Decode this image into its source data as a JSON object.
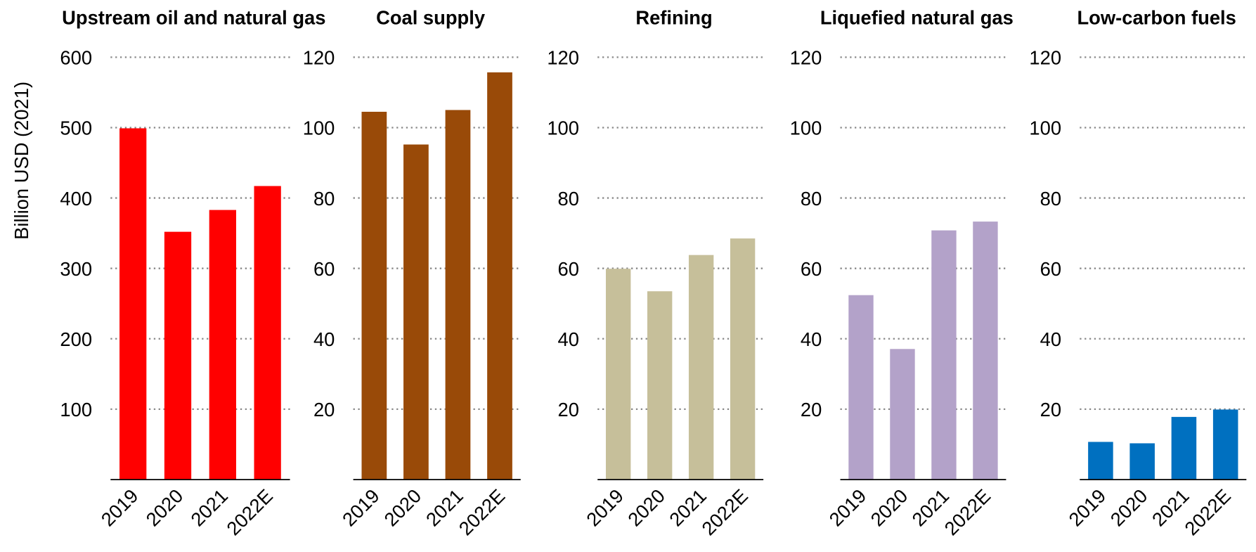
{
  "chart_data": [
    {
      "type": "bar",
      "title": "Upstream oil and natural gas",
      "y_label": "Billion USD (2021)",
      "categories": [
        "2019",
        "2020",
        "2021",
        "2022E"
      ],
      "values": [
        499,
        352,
        383,
        417
      ],
      "color": "#ff0000",
      "ylim": [
        0,
        600
      ],
      "yticks": [
        100,
        200,
        300,
        400,
        500,
        600
      ],
      "grid": true
    },
    {
      "type": "bar",
      "title": "Coal supply",
      "categories": [
        "2019",
        "2020",
        "2021",
        "2022E"
      ],
      "values": [
        104.5,
        95.2,
        105,
        115.7
      ],
      "color": "#994a08",
      "ylim": [
        0,
        120
      ],
      "yticks": [
        20,
        40,
        60,
        80,
        100,
        120
      ],
      "grid": true
    },
    {
      "type": "bar",
      "title": "Refining",
      "categories": [
        "2019",
        "2020",
        "2021",
        "2022E"
      ],
      "values": [
        59.9,
        53.5,
        63.8,
        68.5
      ],
      "color": "#c6bf9a",
      "ylim": [
        0,
        120
      ],
      "yticks": [
        20,
        40,
        60,
        80,
        100,
        120
      ],
      "grid": true
    },
    {
      "type": "bar",
      "title": "Liquefied natural gas",
      "categories": [
        "2019",
        "2020",
        "2021",
        "2022E"
      ],
      "values": [
        52.4,
        37.1,
        70.8,
        73.3
      ],
      "color": "#b3a2c9",
      "ylim": [
        0,
        120
      ],
      "yticks": [
        20,
        40,
        60,
        80,
        100,
        120
      ],
      "grid": true
    },
    {
      "type": "bar",
      "title": "Low-carbon fuels",
      "categories": [
        "2019",
        "2020",
        "2021",
        "2022E"
      ],
      "values": [
        10.7,
        10.3,
        17.8,
        19.9
      ],
      "color": "#0070c0",
      "ylim": [
        0,
        120
      ],
      "yticks": [
        20,
        40,
        60,
        80,
        100,
        120
      ],
      "grid": true
    }
  ]
}
